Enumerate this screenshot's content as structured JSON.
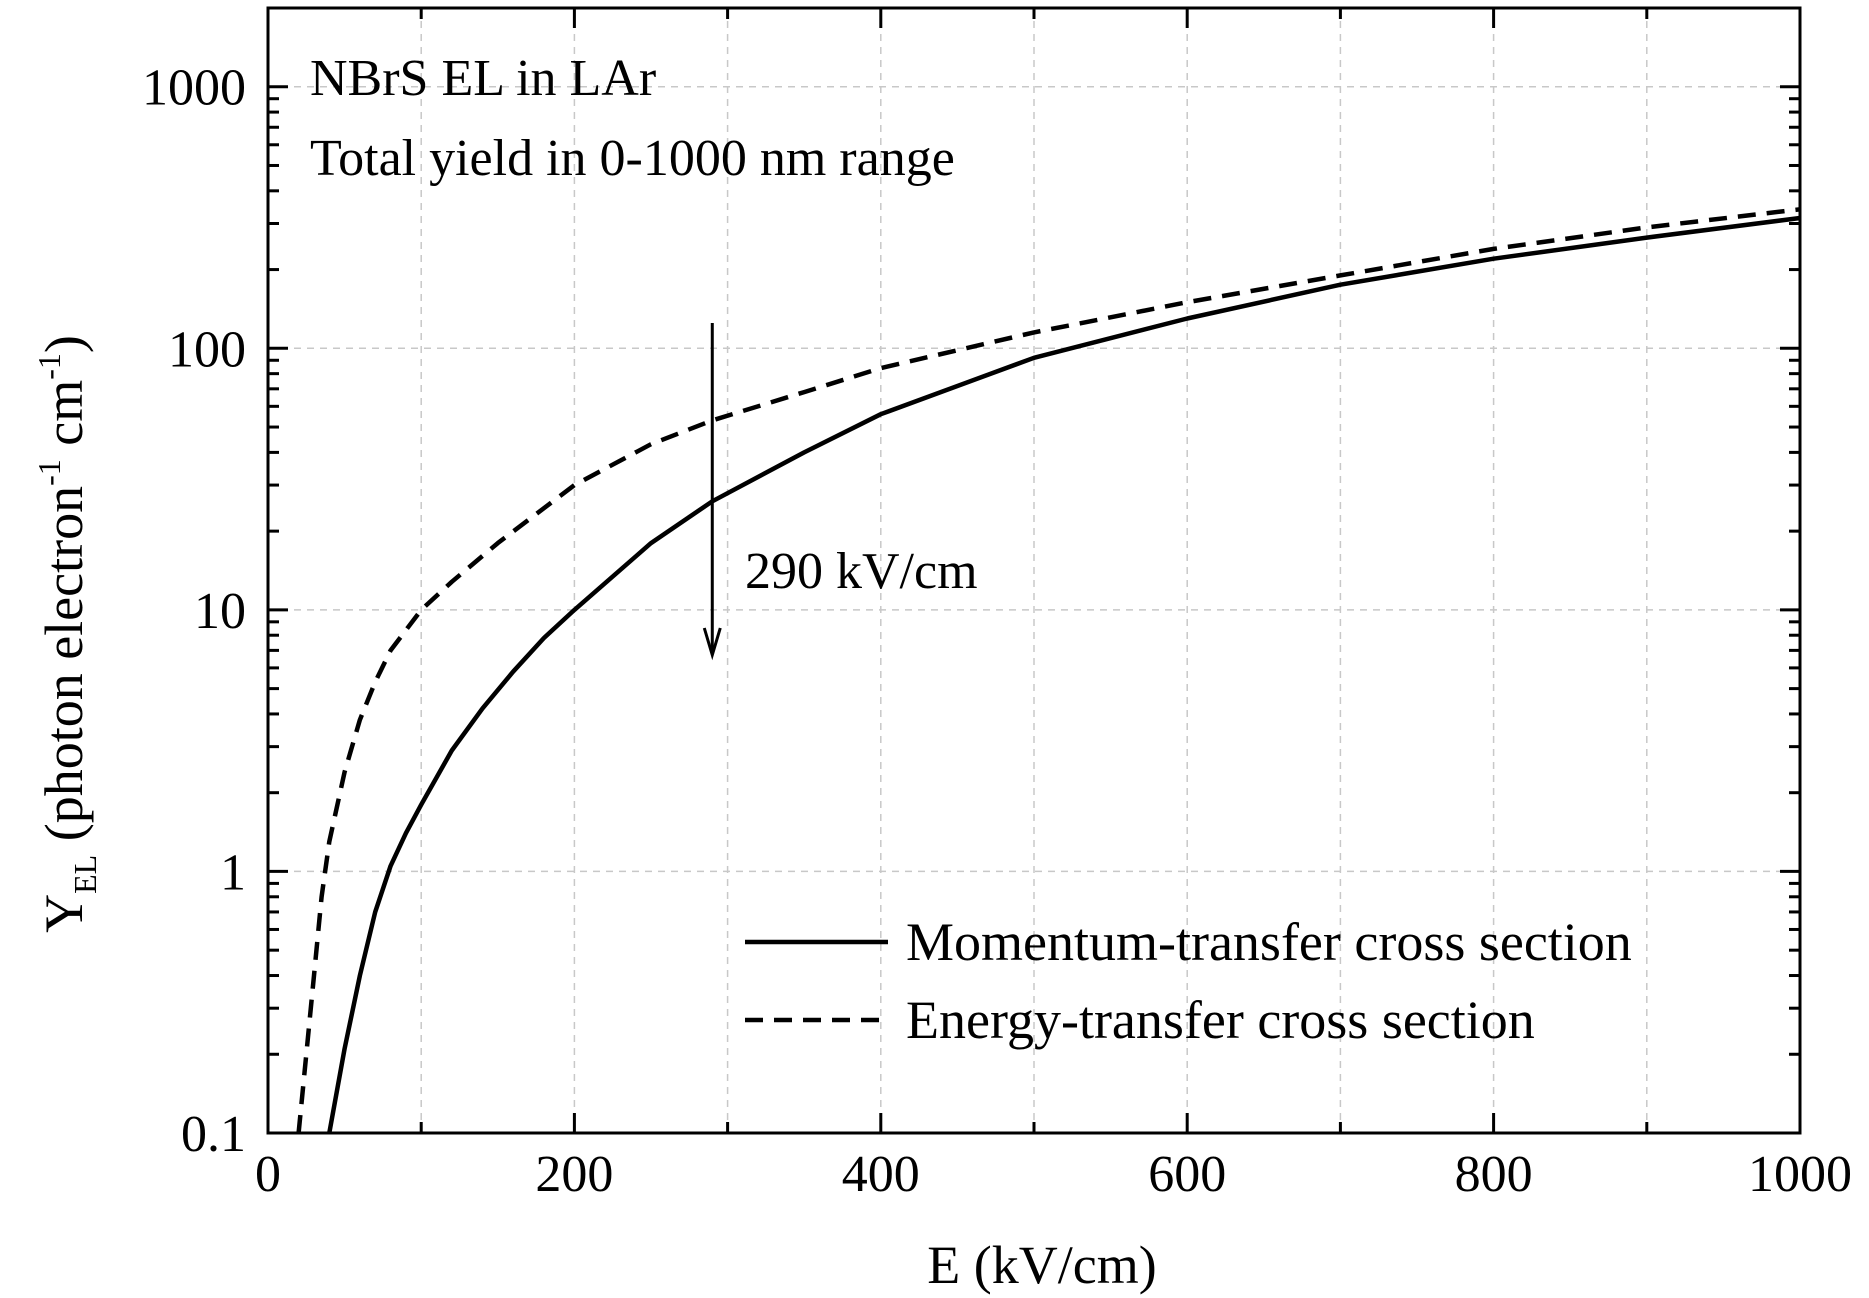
{
  "chart_data": {
    "type": "line",
    "title": "",
    "annotations": [
      "NBrS EL in LAr",
      "Total yield in 0-1000 nm range"
    ],
    "arrow_annotation": {
      "text": "290 kV/cm",
      "x": 290
    },
    "xlabel": "E (kV/cm)",
    "ylabel": {
      "main": "Y",
      "sub": "EL",
      "rest": " (photon electron",
      "sup1": "-1",
      "mid": " cm",
      "sup2": "-1",
      "end": ")"
    },
    "xlim": [
      0,
      1000
    ],
    "ylim": [
      0.1,
      2000
    ],
    "yscale": "log",
    "xticks": [
      0,
      200,
      400,
      600,
      800,
      1000
    ],
    "xtick_labels": [
      "0",
      "200",
      "400",
      "600",
      "800",
      "1000"
    ],
    "yticks": [
      0.1,
      1,
      10,
      100,
      1000
    ],
    "ytick_labels": [
      "0.1",
      "1",
      "10",
      "100",
      "1000"
    ],
    "grid": true,
    "legend_position": "bottom-right",
    "series": [
      {
        "name": "Momentum-transfer cross section",
        "style": "solid",
        "x": [
          40,
          50,
          60,
          70,
          80,
          90,
          100,
          120,
          140,
          160,
          180,
          200,
          250,
          290,
          350,
          400,
          500,
          600,
          700,
          800,
          900,
          1000
        ],
        "values": [
          0.1,
          0.21,
          0.4,
          0.7,
          1.05,
          1.4,
          1.8,
          2.9,
          4.2,
          5.8,
          7.8,
          10,
          18,
          26,
          40,
          56,
          92,
          130,
          175,
          220,
          265,
          315
        ]
      },
      {
        "name": "Energy-transfer cross section",
        "style": "dashed",
        "x": [
          20,
          25,
          30,
          35,
          40,
          50,
          60,
          70,
          80,
          100,
          120,
          150,
          200,
          250,
          290,
          350,
          400,
          500,
          600,
          700,
          800,
          900,
          1000
        ],
        "values": [
          0.1,
          0.2,
          0.4,
          0.8,
          1.3,
          2.4,
          3.8,
          5.3,
          7.0,
          10,
          12.8,
          18,
          30,
          43,
          53,
          68,
          84,
          115,
          150,
          190,
          240,
          290,
          340
        ]
      }
    ]
  }
}
